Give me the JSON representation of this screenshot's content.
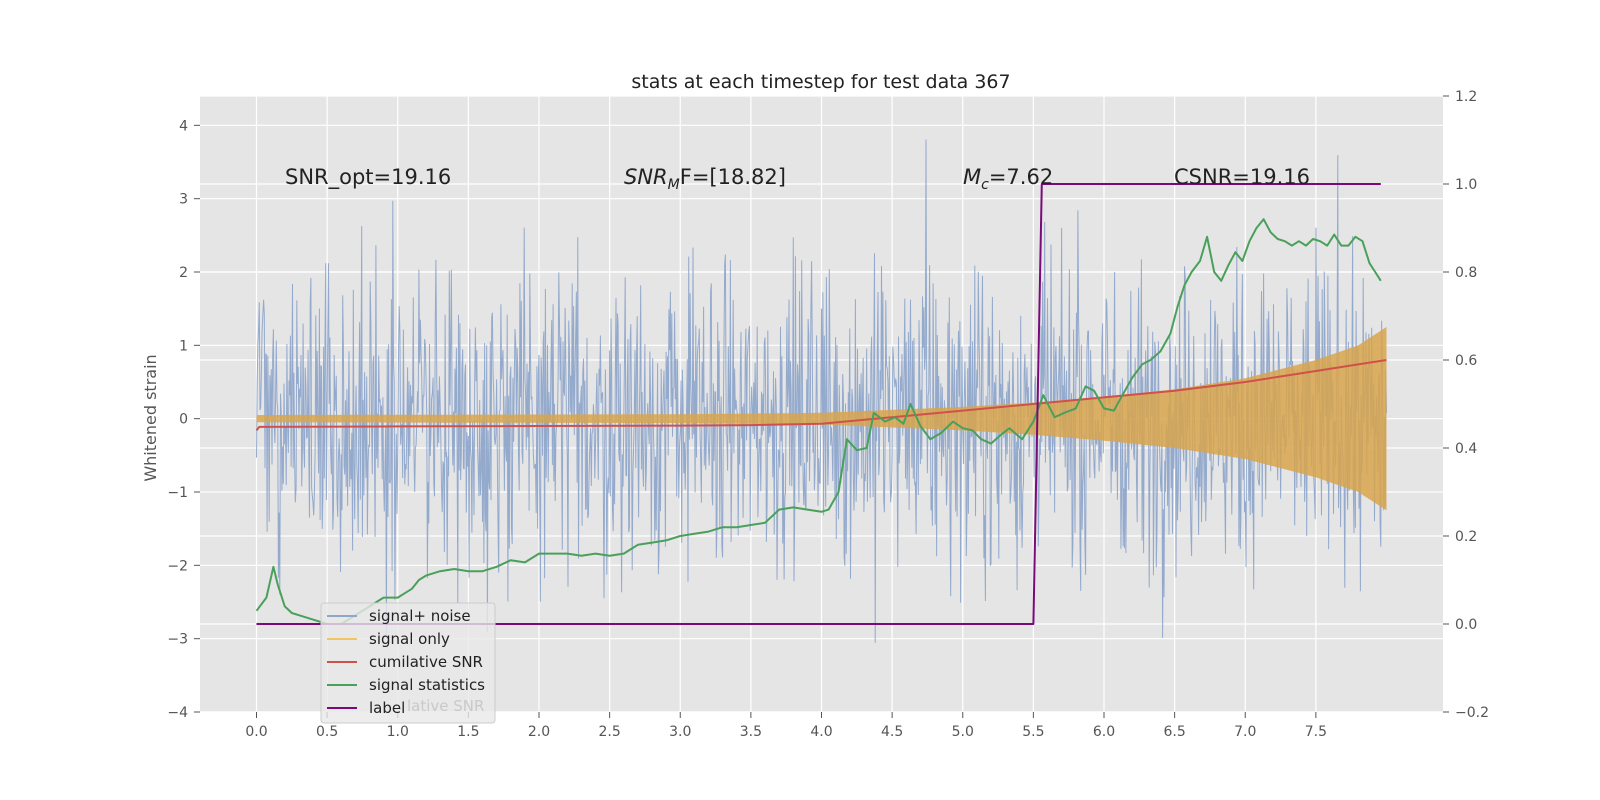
{
  "chart_data": {
    "type": "line",
    "title": "stats at each timestep for test data 367",
    "ylabel": "Whitened strain",
    "xlabel": "",
    "xlim": [
      -0.4,
      8.4
    ],
    "ylim": [
      -4,
      4.4
    ],
    "ylim_right": [
      -0.2,
      1.2
    ],
    "grid": true,
    "legend_placement": "lower-left",
    "x_ticks": [
      "0.0",
      "0.5",
      "1.0",
      "1.5",
      "2.0",
      "2.5",
      "3.0",
      "3.5",
      "4.0",
      "4.5",
      "5.0",
      "5.5",
      "6.0",
      "6.5",
      "7.0",
      "7.5"
    ],
    "y_ticks_left": [
      "−4",
      "−3",
      "−2",
      "−1",
      "0",
      "1",
      "2",
      "3",
      "4"
    ],
    "y_ticks_right": [
      "−0.2",
      "0.0",
      "0.2",
      "0.4",
      "0.6",
      "0.8",
      "1.0",
      "1.2"
    ],
    "annotations": {
      "snr_opt": "SNR_opt=19.16",
      "snr_mf_main": "SNR",
      "snr_mf_sub": "M",
      "snr_mf_rest": "F=[18.82]",
      "mc_main": "M",
      "mc_sub": "c",
      "mc_rest": "=7.62",
      "csnr": "CSNR=19.16"
    },
    "legend": [
      "signal+ noise",
      "signal only",
      "cumilative SNR",
      "signal statistics",
      "label"
    ],
    "legend_ghost_text": "lative SNR",
    "colors": {
      "signal_noise": "#8fa6cb",
      "signal_only": "#d8a44c",
      "cumulative_snr": "#d0504a",
      "signal_statistics": "#4aa05b",
      "label": "#7a0a7a",
      "plot_bg": "#e5e5e5",
      "grid": "#ffffff"
    },
    "series": [
      {
        "name": "signal+ noise",
        "axis": "left",
        "note": "noisy whitened strain, amplitude mostly within about ±2.5 with spikes up to ±4",
        "envelope_x": [
          0.0,
          8.0
        ],
        "envelope_y": [
          -2.6,
          2.6
        ]
      },
      {
        "name": "signal only",
        "axis": "left",
        "x": [
          0.0,
          3.0,
          4.0,
          5.0,
          5.5,
          6.0,
          6.5,
          7.0,
          7.5,
          7.8,
          8.0
        ],
        "amplitude": [
          0.05,
          0.06,
          0.08,
          0.16,
          0.22,
          0.3,
          0.4,
          0.55,
          0.8,
          1.0,
          1.25
        ]
      },
      {
        "name": "cumilative SNR",
        "axis": "right",
        "x": [
          0.0,
          0.02,
          1.0,
          2.0,
          3.0,
          3.5,
          4.0,
          4.5,
          5.0,
          5.5,
          6.0,
          6.5,
          7.0,
          7.5,
          7.8,
          8.0
        ],
        "y": [
          0.44,
          0.448,
          0.449,
          0.45,
          0.451,
          0.452,
          0.455,
          0.47,
          0.485,
          0.5,
          0.515,
          0.53,
          0.55,
          0.575,
          0.59,
          0.6
        ]
      },
      {
        "name": "signal statistics",
        "axis": "right",
        "x": [
          0.0,
          0.07,
          0.12,
          0.15,
          0.2,
          0.25,
          0.3,
          0.4,
          0.5,
          0.6,
          0.7,
          0.8,
          0.9,
          1.0,
          1.05,
          1.1,
          1.15,
          1.2,
          1.3,
          1.4,
          1.5,
          1.6,
          1.7,
          1.8,
          1.9,
          2.0,
          2.1,
          2.2,
          2.3,
          2.4,
          2.5,
          2.6,
          2.7,
          2.8,
          2.9,
          3.0,
          3.1,
          3.2,
          3.3,
          3.4,
          3.5,
          3.6,
          3.7,
          3.8,
          3.9,
          4.0,
          4.05,
          4.12,
          4.18,
          4.25,
          4.32,
          4.37,
          4.45,
          4.52,
          4.58,
          4.63,
          4.7,
          4.77,
          4.85,
          4.93,
          5.0,
          5.07,
          5.13,
          5.2,
          5.27,
          5.33,
          5.42,
          5.5,
          5.57,
          5.65,
          5.72,
          5.8,
          5.87,
          5.93,
          6.0,
          6.07,
          6.13,
          6.2,
          6.27,
          6.33,
          6.4,
          6.47,
          6.52,
          6.57,
          6.62,
          6.68,
          6.73,
          6.78,
          6.83,
          6.88,
          6.93,
          6.98,
          7.03,
          7.08,
          7.13,
          7.18,
          7.23,
          7.28,
          7.33,
          7.38,
          7.43,
          7.48,
          7.53,
          7.58,
          7.63,
          7.68,
          7.73,
          7.78,
          7.83,
          7.88,
          7.92,
          7.96
        ],
        "y": [
          0.03,
          0.06,
          0.13,
          0.09,
          0.04,
          0.025,
          0.02,
          0.01,
          0.0,
          0.0,
          0.02,
          0.04,
          0.06,
          0.06,
          0.07,
          0.08,
          0.1,
          0.11,
          0.12,
          0.125,
          0.12,
          0.12,
          0.13,
          0.145,
          0.14,
          0.16,
          0.16,
          0.16,
          0.155,
          0.16,
          0.155,
          0.16,
          0.18,
          0.185,
          0.19,
          0.2,
          0.205,
          0.21,
          0.22,
          0.22,
          0.225,
          0.23,
          0.26,
          0.265,
          0.26,
          0.255,
          0.26,
          0.3,
          0.42,
          0.395,
          0.4,
          0.48,
          0.46,
          0.47,
          0.455,
          0.5,
          0.45,
          0.42,
          0.435,
          0.46,
          0.445,
          0.44,
          0.42,
          0.41,
          0.43,
          0.445,
          0.42,
          0.46,
          0.52,
          0.47,
          0.48,
          0.49,
          0.54,
          0.53,
          0.49,
          0.485,
          0.52,
          0.56,
          0.59,
          0.6,
          0.62,
          0.66,
          0.72,
          0.77,
          0.8,
          0.825,
          0.88,
          0.8,
          0.78,
          0.815,
          0.845,
          0.825,
          0.87,
          0.9,
          0.92,
          0.89,
          0.875,
          0.87,
          0.86,
          0.87,
          0.86,
          0.875,
          0.87,
          0.86,
          0.885,
          0.86,
          0.86,
          0.88,
          0.87,
          0.82,
          0.8,
          0.78
        ]
      },
      {
        "name": "label",
        "axis": "right",
        "x": [
          0.0,
          5.5,
          5.56,
          7.96
        ],
        "y": [
          0.0,
          0.0,
          1.0,
          1.0
        ]
      }
    ]
  }
}
